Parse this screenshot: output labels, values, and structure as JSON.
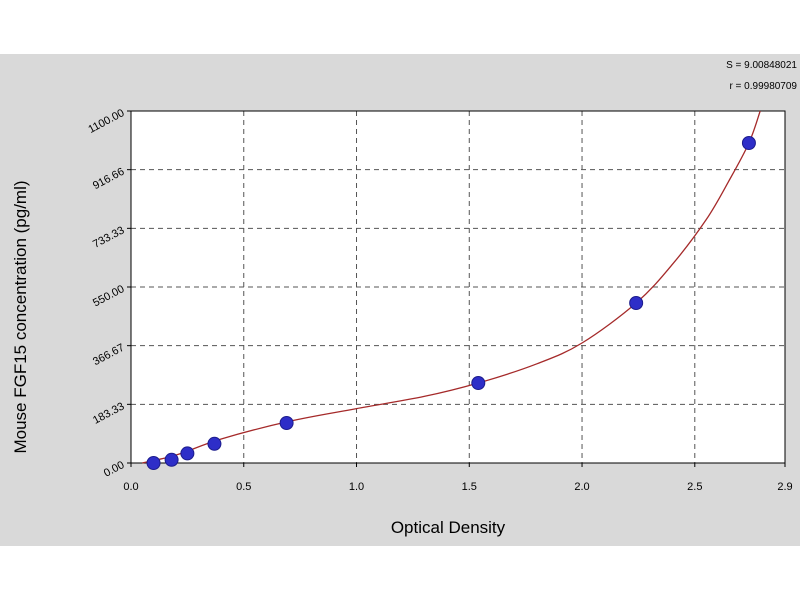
{
  "chart_data": {
    "type": "scatter",
    "xlabel": "Optical Density",
    "ylabel": "Mouse FGF15 concentration (pg/ml)",
    "xlim": [
      0.0,
      2.9
    ],
    "ylim": [
      0,
      1100
    ],
    "x_ticks": [
      0.0,
      0.5,
      1.0,
      1.5,
      2.0,
      2.5,
      2.9
    ],
    "x_tick_labels": [
      "0.0",
      "0.5",
      "1.0",
      "1.5",
      "2.0",
      "2.5",
      "2.9"
    ],
    "y_ticks": [
      0,
      183.33,
      366.67,
      550.0,
      733.33,
      916.66,
      1100.0
    ],
    "y_tick_labels": [
      "0.00",
      "183.33",
      "366.67",
      "550.00",
      "733.33",
      "916.66",
      "1100.00"
    ],
    "grid": true,
    "stats": [
      "S = 9.00848021",
      "r = 0.99980709"
    ],
    "points": {
      "x": [
        0.1,
        0.18,
        0.25,
        0.37,
        0.69,
        1.54,
        2.24,
        2.74
      ],
      "y": [
        0,
        10,
        30,
        60,
        125,
        250,
        500,
        1000
      ]
    },
    "fit_curve": {
      "x": [
        0.05,
        0.2,
        0.4,
        0.7,
        1.0,
        1.3,
        1.54,
        1.8,
        2.0,
        2.24,
        2.4,
        2.55,
        2.65,
        2.74,
        2.79
      ],
      "y": [
        0,
        25,
        75,
        130,
        170,
        208,
        250,
        310,
        375,
        500,
        620,
        760,
        880,
        1000,
        1100
      ]
    },
    "colors": {
      "background": "#d9d9d9",
      "plot_area": "#ffffff",
      "grid": "#555555",
      "curve": "#a52a2a",
      "marker": "#2e2ec8",
      "marker_edge": "#1c1c8c"
    }
  }
}
